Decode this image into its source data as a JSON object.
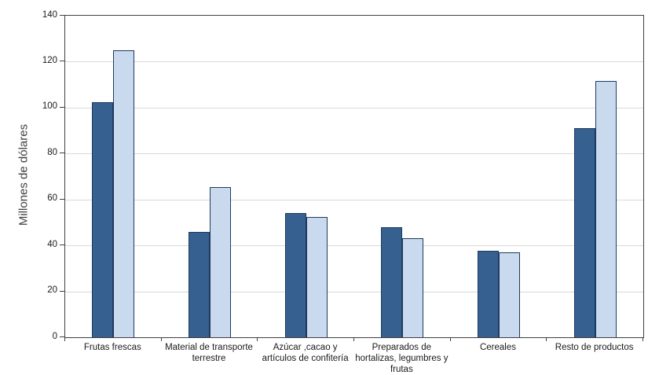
{
  "chart_data": {
    "type": "bar",
    "title": "",
    "xlabel": "",
    "ylabel": "Millones de dólares",
    "ylim": [
      0,
      140
    ],
    "ytick_step": 20,
    "grid": "horizontal",
    "legend_position": "none",
    "categories": [
      "Frutas frescas",
      "Material de transporte\nterrestre",
      "Azúcar ,cacao y\nartículos de confitería",
      "Preparados de\nhortalizas, legumbres y\nfrutas",
      "Cereales",
      "Resto de productos"
    ],
    "series": [
      {
        "name": "dark",
        "color": "#36608f",
        "values": [
          102.5,
          46,
          54,
          48,
          37.5,
          91
        ]
      },
      {
        "name": "light",
        "color": "#c9d9ee",
        "values": [
          125,
          65.5,
          52.5,
          43,
          37,
          111.5
        ]
      }
    ],
    "colors": {
      "bar_border": "#1f3a5f",
      "gridline": "#d9d9d9",
      "axis": "#404040",
      "tick_text": "#1a1a1a",
      "axis_title_text": "#404040",
      "background": "#ffffff"
    }
  }
}
